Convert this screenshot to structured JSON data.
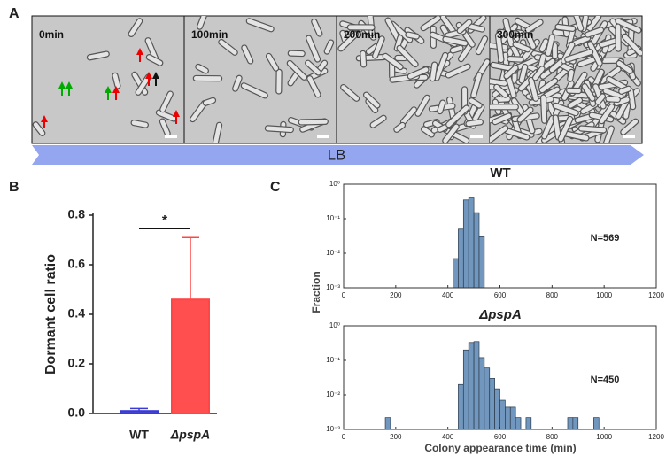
{
  "panel_labels": [
    "A",
    "B",
    "C"
  ],
  "microscopy": {
    "frames": [
      "0min",
      "100min",
      "200min",
      "300min"
    ],
    "condition": "LB"
  },
  "chart_data": [
    {
      "type": "bar",
      "categories": [
        "WT",
        "ΔpspA"
      ],
      "values": [
        0.01,
        0.46
      ],
      "errors": [
        0.01,
        0.25
      ],
      "colors": [
        "#3a3ad4",
        "#ff4646"
      ],
      "ylim": [
        0,
        0.8
      ],
      "yticks": [
        {
          "value": 0,
          "label": "0.0"
        },
        0.2,
        0.4,
        0.6,
        0.8
      ],
      "ylabel": "Dormant cell ratio",
      "annotation": "*"
    },
    {
      "type": "histogram",
      "title": "WT",
      "annotation": "N=569",
      "ylabel": "Fraction",
      "color": "#7197be",
      "bins": [
        420,
        440,
        460,
        480,
        500,
        520,
        540
      ],
      "values": [
        0.007,
        0.05,
        0.35,
        0.4,
        0.15,
        0.03
      ],
      "xlim": [
        0,
        1200
      ],
      "xticks": [
        0,
        200,
        400,
        600,
        800,
        1000,
        1200
      ],
      "log_y": true,
      "ylim": [
        0.001,
        1
      ],
      "yticks": [
        {
          "value": 0.001,
          "label": "10⁻³"
        },
        {
          "value": 0.01,
          "label": "10⁻²"
        },
        {
          "value": 0.1,
          "label": "10⁻¹"
        },
        {
          "value": 1,
          "label": "10⁰"
        }
      ]
    },
    {
      "type": "histogram",
      "title": "ΔpspA",
      "annotation": "N=450",
      "xlabel": "Colony appearance time (min)",
      "color": "#7197be",
      "bins": [
        140,
        160,
        180,
        200,
        220,
        240,
        260,
        280,
        300,
        320,
        340,
        360,
        380,
        400,
        420,
        440,
        460,
        480,
        500,
        520,
        540,
        560,
        580,
        600,
        620,
        640,
        660,
        680,
        700,
        720,
        740,
        760,
        780,
        800,
        820,
        840,
        860,
        880,
        900,
        920,
        940,
        960,
        980,
        1000
      ],
      "values": [
        0,
        0.0022,
        0,
        0,
        0,
        0,
        0,
        0,
        0,
        0,
        0,
        0,
        0,
        0,
        0,
        0.02,
        0.2,
        0.33,
        0.35,
        0.12,
        0.06,
        0.03,
        0.015,
        0.007,
        0.0044,
        0.0044,
        0.0022,
        0,
        0.0022,
        0,
        0,
        0,
        0,
        0,
        0,
        0,
        0.0022,
        0.0022,
        0,
        0,
        0,
        0.0022,
        0
      ],
      "xlim": [
        0,
        1200
      ],
      "xticks": [
        0,
        200,
        400,
        600,
        800,
        1000,
        1200
      ],
      "log_y": true,
      "ylim": [
        0.001,
        1
      ],
      "yticks": [
        {
          "value": 0.001,
          "label": "10⁻³"
        },
        {
          "value": 0.01,
          "label": "10⁻²"
        },
        {
          "value": 0.1,
          "label": "10⁻¹"
        },
        {
          "value": 1,
          "label": "10⁰"
        }
      ]
    }
  ]
}
